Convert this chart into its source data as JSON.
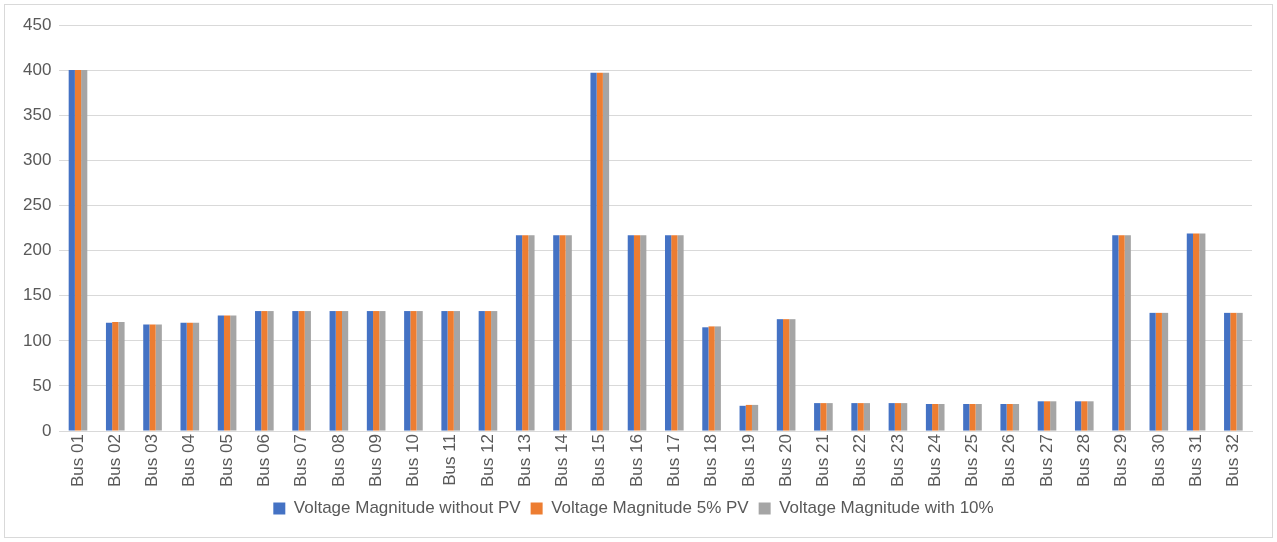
{
  "chart_data": {
    "type": "bar",
    "categories": [
      "Bus 01",
      "Bus 02",
      "Bus 03",
      "Bus 04",
      "Bus 05",
      "Bus 06",
      "Bus 07",
      "Bus 08",
      "Bus 09",
      "Bus 10",
      "Bus 11",
      "Bus 12",
      "Bus 13",
      "Bus 14",
      "Bus 15",
      "Bus 16",
      "Bus 17",
      "Bus 18",
      "Bus 19",
      "Bus 20",
      "Bus 21",
      "Bus 22",
      "Bus 23",
      "Bus 24",
      "Bus 25",
      "Bus 26",
      "Bus 27",
      "Bus 28",
      "Bus 29",
      "Bus 30",
      "Bus 31",
      "Bus 32"
    ],
    "series": [
      {
        "name": "Voltage Magnitude without PV",
        "color": "#4472c4",
        "values": [
          400,
          120,
          118,
          120,
          128,
          133,
          133,
          133,
          133,
          133,
          133,
          133,
          217,
          217,
          397,
          217,
          217,
          115,
          28,
          124,
          31,
          31,
          31,
          30,
          30,
          30,
          33,
          33,
          217,
          131,
          219,
          131
        ]
      },
      {
        "name": "Voltage Magnitude 5% PV",
        "color": "#ed7d31",
        "values": [
          400,
          121,
          118,
          120,
          128,
          133,
          133,
          133,
          133,
          133,
          133,
          133,
          217,
          217,
          397,
          217,
          217,
          116,
          29,
          124,
          31,
          31,
          31,
          30,
          30,
          30,
          33,
          33,
          217,
          131,
          219,
          131
        ]
      },
      {
        "name": "Voltage Magnitude with 10%",
        "color": "#a5a5a5",
        "values": [
          400,
          121,
          118,
          120,
          128,
          133,
          133,
          133,
          133,
          133,
          133,
          133,
          217,
          217,
          397,
          217,
          217,
          116,
          29,
          124,
          31,
          31,
          31,
          30,
          30,
          30,
          33,
          33,
          217,
          131,
          219,
          131
        ]
      }
    ],
    "ylim": [
      0,
      450
    ],
    "yticks": [
      0,
      50,
      100,
      150,
      200,
      250,
      300,
      350,
      400,
      450
    ],
    "grid": "y",
    "legend": "bottom"
  }
}
